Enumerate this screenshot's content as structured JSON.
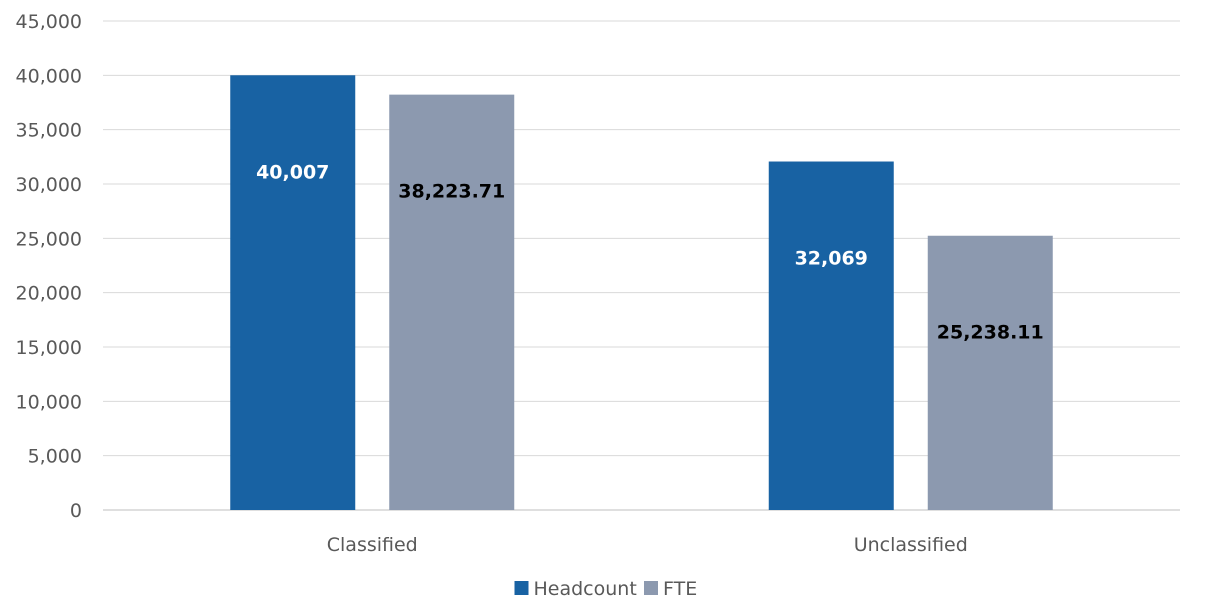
{
  "chart_data": {
    "type": "bar",
    "title": "",
    "xlabel": "",
    "ylabel": "",
    "categories": [
      "Classified",
      "Unclassified"
    ],
    "series": [
      {
        "name": "Headcount",
        "values": [
          40007,
          32069
        ],
        "labels": [
          "40,007",
          "32,069"
        ],
        "color": "#1862A3",
        "label_color": "#FFFFFF"
      },
      {
        "name": "FTE",
        "values": [
          38223.71,
          25238.11
        ],
        "labels": [
          "38,223.71",
          "25,238.11"
        ],
        "color": "#8C99AF",
        "label_color": "#000000"
      }
    ],
    "ylim": [
      0,
      45000
    ],
    "yticks": [
      0,
      5000,
      10000,
      15000,
      20000,
      25000,
      30000,
      35000,
      40000,
      45000
    ],
    "ytick_labels": [
      "0",
      "5,000",
      "10,000",
      "15,000",
      "20,000",
      "25,000",
      "30,000",
      "35,000",
      "40,000",
      "45,000"
    ],
    "grid": true,
    "legend_position": "bottom"
  }
}
